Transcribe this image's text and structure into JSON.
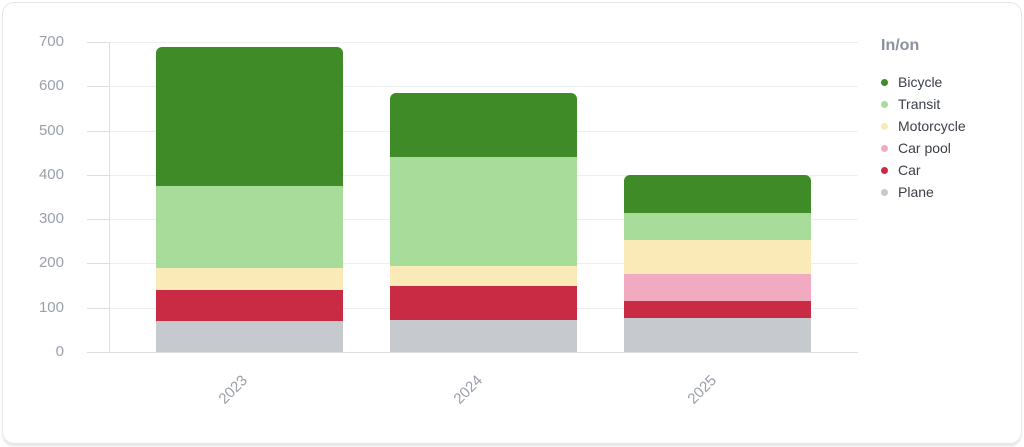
{
  "chart_data": {
    "type": "bar",
    "stacked": true,
    "title": "",
    "xlabel": "",
    "ylabel": "",
    "categories": [
      "2023",
      "2024",
      "2025"
    ],
    "series": [
      {
        "name": "Plane",
        "color": "#c6c9ce",
        "values": [
          70,
          72,
          78
        ]
      },
      {
        "name": "Car",
        "color": "#c92b44",
        "values": [
          70,
          78,
          37
        ]
      },
      {
        "name": "Car pool",
        "color": "#f1aac0",
        "values": [
          0,
          0,
          62
        ]
      },
      {
        "name": "Motorcycle",
        "color": "#f9eab8",
        "values": [
          50,
          45,
          75
        ]
      },
      {
        "name": "Transit",
        "color": "#a8dc9b",
        "values": [
          185,
          245,
          61
        ]
      },
      {
        "name": "Bicycle",
        "color": "#3e8b28",
        "values": [
          315,
          145,
          87
        ]
      }
    ],
    "totals": [
      690,
      585,
      400
    ],
    "y_ticks": [
      0,
      100,
      200,
      300,
      400,
      500,
      600,
      700
    ],
    "ylim": [
      0,
      700
    ],
    "grid": true,
    "legend": {
      "title": "In/on",
      "position": "right",
      "order": [
        "Bicycle",
        "Transit",
        "Motorcycle",
        "Car pool",
        "Car",
        "Plane"
      ]
    }
  }
}
